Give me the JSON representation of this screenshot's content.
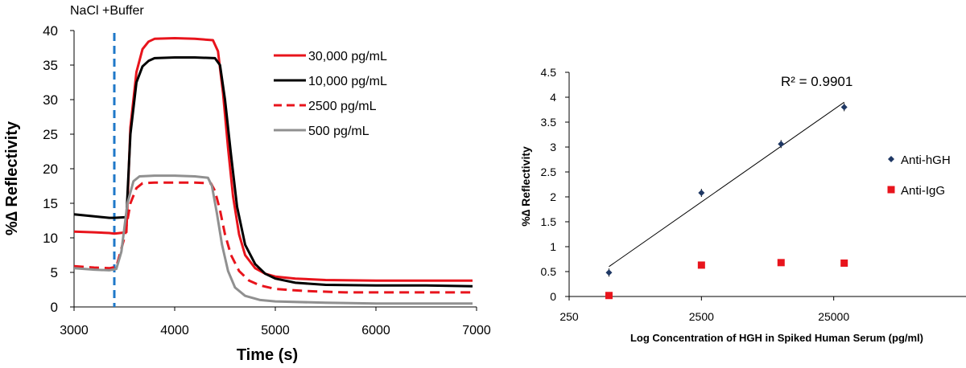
{
  "chart_data": [
    {
      "type": "line",
      "title": "",
      "annotation": "NaCl +Buffer",
      "annotation_x": 3400,
      "xlabel": "Time (s)",
      "ylabel": "%∆ Reflectivity",
      "xlim": [
        3000,
        7000
      ],
      "ylim": [
        0,
        40
      ],
      "xticks": [
        3000,
        4000,
        5000,
        6000,
        7000
      ],
      "xtick_labels": [
        "3000",
        "4000",
        "5000",
        "6000",
        "7000"
      ],
      "yticks": [
        0,
        5,
        10,
        15,
        20,
        25,
        30,
        35,
        40
      ],
      "ytick_labels": [
        "0",
        "5",
        "10",
        "15",
        "20",
        "25",
        "30",
        "35",
        "40"
      ],
      "legend_position": "top-right",
      "series": [
        {
          "name": "30,000 pg/mL",
          "color": "#e8141c",
          "dash": "solid",
          "points": [
            [
              3000,
              10.9
            ],
            [
              3200,
              10.8
            ],
            [
              3350,
              10.7
            ],
            [
              3400,
              10.6
            ],
            [
              3520,
              10.8
            ],
            [
              3560,
              26
            ],
            [
              3620,
              34
            ],
            [
              3680,
              37.3
            ],
            [
              3740,
              38.4
            ],
            [
              3800,
              38.8
            ],
            [
              4000,
              38.9
            ],
            [
              4200,
              38.8
            ],
            [
              4380,
              38.6
            ],
            [
              4430,
              37
            ],
            [
              4480,
              31
            ],
            [
              4530,
              23
            ],
            [
              4580,
              16
            ],
            [
              4640,
              10.5
            ],
            [
              4700,
              7.5
            ],
            [
              4800,
              5.6
            ],
            [
              4900,
              4.8
            ],
            [
              5000,
              4.4
            ],
            [
              5200,
              4.1
            ],
            [
              5500,
              3.9
            ],
            [
              6000,
              3.8
            ],
            [
              6500,
              3.8
            ],
            [
              6960,
              3.8
            ]
          ]
        },
        {
          "name": "10,000 pg/mL",
          "color": "#000000",
          "dash": "solid",
          "points": [
            [
              3000,
              13.4
            ],
            [
              3200,
              13.1
            ],
            [
              3350,
              12.9
            ],
            [
              3400,
              12.9
            ],
            [
              3520,
              13
            ],
            [
              3560,
              25
            ],
            [
              3620,
              32.5
            ],
            [
              3680,
              34.8
            ],
            [
              3740,
              35.6
            ],
            [
              3800,
              36
            ],
            [
              4000,
              36.1
            ],
            [
              4200,
              36.1
            ],
            [
              4400,
              36
            ],
            [
              4450,
              35
            ],
            [
              4500,
              30
            ],
            [
              4560,
              22
            ],
            [
              4620,
              14.5
            ],
            [
              4700,
              9
            ],
            [
              4800,
              6.2
            ],
            [
              4900,
              4.8
            ],
            [
              5000,
              4.1
            ],
            [
              5200,
              3.5
            ],
            [
              5500,
              3.2
            ],
            [
              6000,
              3.1
            ],
            [
              6500,
              3.1
            ],
            [
              6960,
              3.0
            ]
          ]
        },
        {
          "name": "2500 pg/mL",
          "color": "#e8141c",
          "dash": "dashed",
          "points": [
            [
              3000,
              5.9
            ],
            [
              3200,
              5.7
            ],
            [
              3350,
              5.6
            ],
            [
              3420,
              5.8
            ],
            [
              3500,
              10
            ],
            [
              3560,
              15
            ],
            [
              3620,
              17.2
            ],
            [
              3680,
              17.9
            ],
            [
              3800,
              18
            ],
            [
              4000,
              18
            ],
            [
              4200,
              18
            ],
            [
              4360,
              17.9
            ],
            [
              4400,
              16.8
            ],
            [
              4450,
              14
            ],
            [
              4500,
              10.5
            ],
            [
              4560,
              7.5
            ],
            [
              4640,
              5.2
            ],
            [
              4740,
              3.8
            ],
            [
              4850,
              3.1
            ],
            [
              5000,
              2.6
            ],
            [
              5300,
              2.3
            ],
            [
              5700,
              2.1
            ],
            [
              6200,
              2.1
            ],
            [
              6960,
              2.1
            ]
          ]
        },
        {
          "name": "500 pg/mL",
          "color": "#909090",
          "dash": "solid",
          "points": [
            [
              3000,
              5.6
            ],
            [
              3200,
              5.4
            ],
            [
              3350,
              5.3
            ],
            [
              3420,
              5.5
            ],
            [
              3470,
              8
            ],
            [
              3530,
              15
            ],
            [
              3590,
              18.2
            ],
            [
              3650,
              18.9
            ],
            [
              3800,
              19
            ],
            [
              4000,
              19
            ],
            [
              4200,
              18.9
            ],
            [
              4330,
              18.7
            ],
            [
              4370,
              17.5
            ],
            [
              4420,
              13.5
            ],
            [
              4470,
              9
            ],
            [
              4530,
              5.2
            ],
            [
              4600,
              2.8
            ],
            [
              4700,
              1.6
            ],
            [
              4850,
              1.0
            ],
            [
              5000,
              0.8
            ],
            [
              5500,
              0.6
            ],
            [
              6000,
              0.5
            ],
            [
              6500,
              0.5
            ],
            [
              6960,
              0.5
            ]
          ]
        }
      ]
    },
    {
      "type": "scatter",
      "title": "",
      "annotation": "R² = 0.9901",
      "xlabel": "Log Concentration of HGH in Spiked Human Serum (pg/ml)",
      "ylabel": "%∆ Reflectivity",
      "xscale": "log",
      "xlim": [
        250,
        250000
      ],
      "ylim": [
        0,
        4.5
      ],
      "xticks": [
        250,
        2500,
        25000
      ],
      "xtick_labels": [
        "250",
        "2500",
        "25000"
      ],
      "yticks": [
        0,
        0.5,
        1,
        1.5,
        2,
        2.5,
        3,
        3.5,
        4,
        4.5
      ],
      "ytick_labels": [
        "0",
        "0.5",
        "1",
        "1.5",
        "2",
        "2.5",
        "3",
        "3.5",
        "4",
        "4.5"
      ],
      "legend_position": "right",
      "trendline": {
        "series": "Anti-hGH",
        "from": [
          500,
          0.6
        ],
        "to": [
          30000,
          3.9
        ]
      },
      "series": [
        {
          "name": "Anti-hGH",
          "color": "#1f3864",
          "marker": "diamond",
          "x": [
            500,
            2500,
            10000,
            30000
          ],
          "y": [
            0.48,
            2.08,
            3.06,
            3.8
          ]
        },
        {
          "name": "Anti-IgG",
          "color": "#e8141c",
          "marker": "square",
          "x": [
            500,
            2500,
            10000,
            30000
          ],
          "y": [
            0.02,
            0.63,
            0.68,
            0.67
          ]
        }
      ]
    }
  ]
}
